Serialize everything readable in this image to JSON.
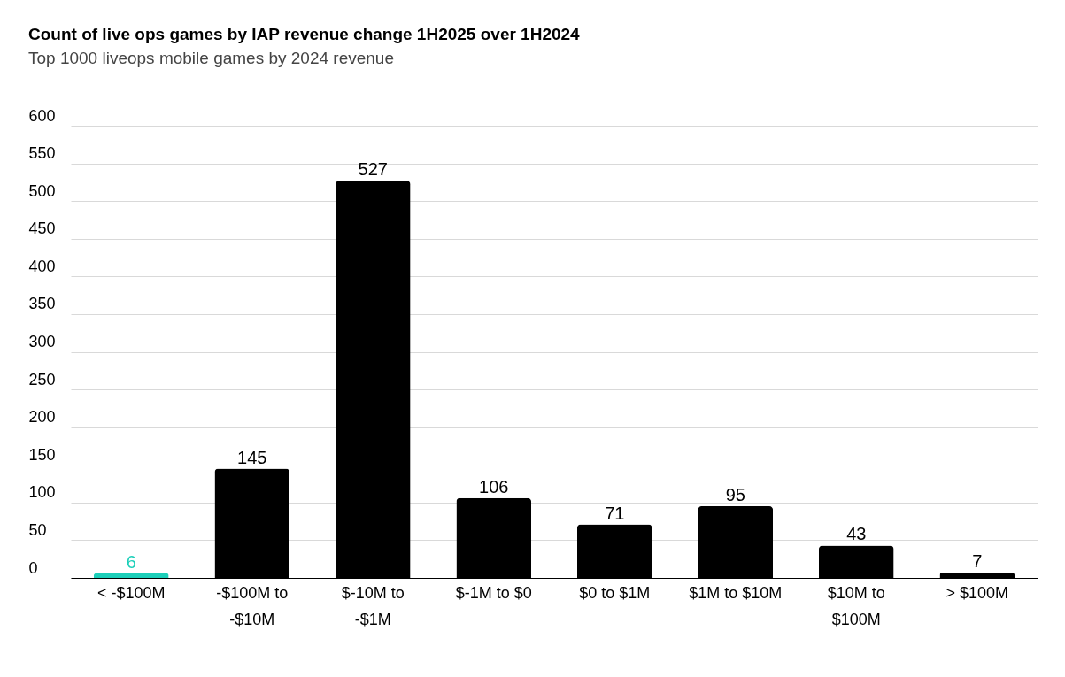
{
  "chart_data": {
    "type": "bar",
    "title": "Count of live ops games by IAP revenue change 1H2025 over 1H2024",
    "subtitle": "Top 1000 liveops mobile games by 2024 revenue",
    "categories": [
      "< -$100M",
      "-$100M to -$10M",
      "$-10M to -$1M",
      "$-1M to $0",
      "$0 to $1M",
      "$1M to $10M",
      "$10M to $100M",
      "> $100M"
    ],
    "values": [
      6,
      145,
      527,
      106,
      71,
      95,
      43,
      7
    ],
    "colors": [
      "#1ccfb9",
      "#000000",
      "#000000",
      "#000000",
      "#000000",
      "#000000",
      "#000000",
      "#000000"
    ],
    "ylim": [
      0,
      600
    ],
    "yticks": [
      0,
      50,
      100,
      150,
      200,
      250,
      300,
      350,
      400,
      450,
      500,
      550,
      600
    ],
    "grid": "y",
    "data_labels": true
  }
}
